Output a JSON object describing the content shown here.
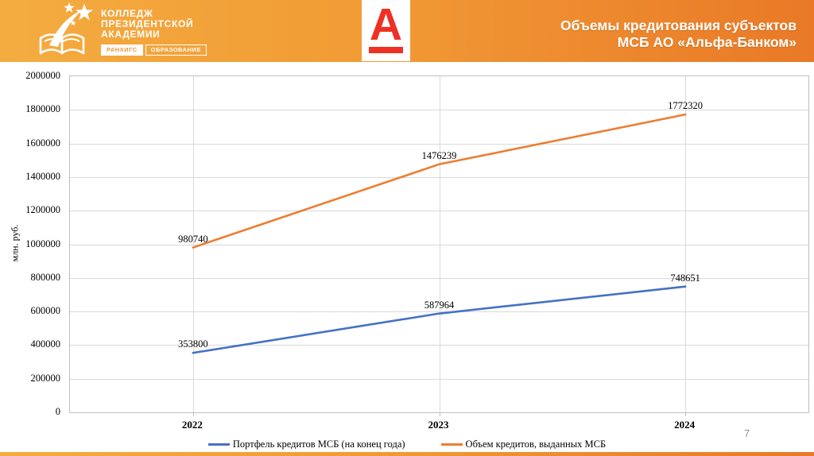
{
  "header": {
    "college_logo": {
      "name_line1": "КОЛЛЕДЖ",
      "name_line2": "ПРЕЗИДЕНТСКОЙ",
      "name_line3": "АКАДЕМИИ",
      "badge_left": "РАНХИГС",
      "badge_right": "ОБРАЗОВАНИЕ"
    },
    "alfa_logo_letter": "А",
    "title_line1": "Объемы кредитования субъектов",
    "title_line2": "МСБ АО «Альфа-Банком»"
  },
  "chart_data": {
    "type": "line",
    "categories": [
      "2022",
      "2023",
      "2024"
    ],
    "series": [
      {
        "name": "Портфель кредитов МСБ (на конец года)",
        "color": "#4472C4",
        "values": [
          353800,
          587964,
          748651
        ]
      },
      {
        "name": "Объем кредитов, выданных МСБ",
        "color": "#ED7D31",
        "values": [
          980740,
          1476239,
          1772320
        ]
      }
    ],
    "title": "",
    "xlabel": "",
    "ylabel": "млн. руб.",
    "ylim": [
      0,
      2000000
    ],
    "ytick_step": 200000,
    "grid": true,
    "data_labels": true,
    "legend_position": "bottom"
  },
  "footer": {
    "page_number": "7"
  },
  "colors": {
    "header_gradient_start": "#F4AC40",
    "header_gradient_end": "#E97927",
    "alfa_red": "#EE3124",
    "badge_text_orange": "#E9983A",
    "series_blue": "#4472C4",
    "series_orange": "#ED7D31",
    "gridline": "#D9D9D9",
    "plot_border": "#BFBFBF",
    "page_number": "#8F8F8F"
  }
}
